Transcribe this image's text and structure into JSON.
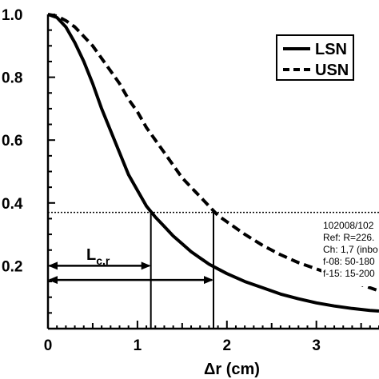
{
  "chart_data": {
    "type": "line",
    "xlabel": "Δr (cm)",
    "ylabel": "",
    "xlim": [
      0,
      3.7
    ],
    "ylim": [
      0,
      1.0
    ],
    "x_ticks": [
      "0",
      "1",
      "2",
      "3"
    ],
    "x_tick_values": [
      0,
      1,
      2,
      3
    ],
    "y_ticks": [
      "0.2",
      "0.4",
      "0.6",
      "0.8",
      "1.0"
    ],
    "y_tick_values": [
      0.2,
      0.4,
      0.6,
      0.8,
      1.0
    ],
    "grid": false,
    "legend_position": "top-right",
    "series": [
      {
        "name": "LSN",
        "style": "solid",
        "x": [
          0,
          0.1,
          0.2,
          0.3,
          0.4,
          0.5,
          0.6,
          0.7,
          0.8,
          0.9,
          1.0,
          1.1,
          1.2,
          1.3,
          1.4,
          1.5,
          1.6,
          1.7,
          1.8,
          1.9,
          2.0,
          2.2,
          2.4,
          2.6,
          2.8,
          3.0,
          3.2,
          3.4,
          3.6,
          3.7
        ],
        "y": [
          1.0,
          0.99,
          0.96,
          0.91,
          0.85,
          0.78,
          0.7,
          0.63,
          0.56,
          0.49,
          0.44,
          0.39,
          0.355,
          0.325,
          0.295,
          0.27,
          0.245,
          0.225,
          0.205,
          0.19,
          0.175,
          0.15,
          0.13,
          0.11,
          0.095,
          0.082,
          0.072,
          0.064,
          0.058,
          0.056
        ]
      },
      {
        "name": "USN",
        "style": "dashed",
        "x": [
          0,
          0.1,
          0.2,
          0.3,
          0.4,
          0.5,
          0.6,
          0.7,
          0.8,
          0.9,
          1.0,
          1.1,
          1.2,
          1.3,
          1.4,
          1.5,
          1.6,
          1.7,
          1.8,
          1.9,
          2.0,
          2.2,
          2.4,
          2.6,
          2.8,
          3.0,
          3.2,
          3.4,
          3.6,
          3.7
        ],
        "y": [
          1.0,
          0.995,
          0.98,
          0.96,
          0.93,
          0.9,
          0.86,
          0.82,
          0.78,
          0.73,
          0.69,
          0.64,
          0.6,
          0.56,
          0.52,
          0.48,
          0.45,
          0.42,
          0.39,
          0.36,
          0.34,
          0.3,
          0.265,
          0.235,
          0.21,
          0.19,
          0.17,
          0.15,
          0.13,
          0.12
        ]
      }
    ],
    "threshold_y": 0.37,
    "crossings": [
      {
        "x": 1.15,
        "y": 0.37,
        "series": "LSN"
      },
      {
        "x": 1.85,
        "y": 0.37,
        "series": "USN"
      }
    ],
    "arrows": [
      {
        "y": 0.2,
        "x_end": 1.15,
        "label_main": "L",
        "label_sub": "c,r"
      },
      {
        "y": 0.155,
        "x_end": 1.85
      }
    ],
    "annotation_lines": [
      "102008/102",
      "Ref: R=226.",
      "Ch: 1,7 (inbo",
      "f-08: 50-180",
      "f-15: 15-200"
    ]
  }
}
